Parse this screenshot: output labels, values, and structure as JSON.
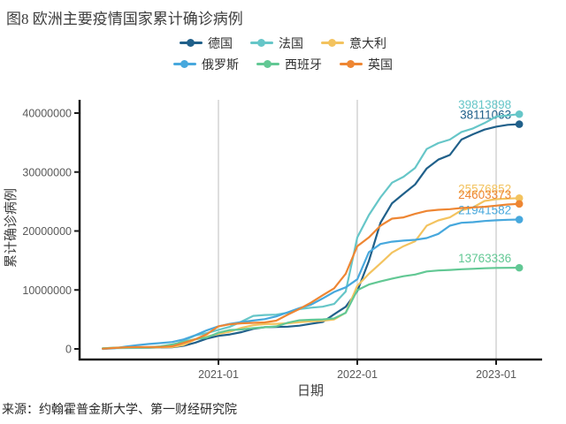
{
  "figure": {
    "title": "图8 欧洲主要疫情国家累计确诊病例",
    "source": "来源：约翰霍普金斯大学、第一财经研究院"
  },
  "colors": {
    "axis": "#1a1a1a",
    "grid": "#c9c9c9",
    "tick_label": "#595959",
    "text": "#3d3d3d"
  },
  "chart_data": {
    "type": "line",
    "title": "图8 欧洲主要疫情国家累计确诊病例",
    "xlabel": "日期",
    "ylabel": "累计确诊病例",
    "ylim": [
      0,
      40000000
    ],
    "yticks": [
      "0",
      "10000000",
      "20000000",
      "30000000",
      "40000000"
    ],
    "xticks": [
      "2021-01",
      "2022-01",
      "2023-01"
    ],
    "grid": "vertical-gridlines-at-year-ticks",
    "legend_position": "top",
    "x": [
      "2020-03",
      "2020-04",
      "2020-05",
      "2020-06",
      "2020-07",
      "2020-08",
      "2020-09",
      "2020-10",
      "2020-11",
      "2020-12",
      "2021-01",
      "2021-02",
      "2021-03",
      "2021-04",
      "2021-05",
      "2021-06",
      "2021-07",
      "2021-08",
      "2021-09",
      "2021-10",
      "2021-11",
      "2021-12",
      "2022-01",
      "2022-02",
      "2022-03",
      "2022-04",
      "2022-05",
      "2022-06",
      "2022-07",
      "2022-08",
      "2022-09",
      "2022-10",
      "2022-11",
      "2022-12",
      "2023-01",
      "2023-02",
      "2023-03"
    ],
    "series": [
      {
        "id": "germany",
        "name": "德国",
        "color": "#20608a",
        "final_label": "38111063",
        "values": [
          72000,
          163000,
          183000,
          195000,
          210000,
          244000,
          292000,
          532000,
          1060000,
          1760000,
          2220000,
          2450000,
          2843000,
          3400000,
          3682000,
          3727000,
          3770000,
          3942000,
          4255000,
          4560000,
          5880000,
          7150000,
          9800000,
          14900000,
          21400000,
          24700000,
          26300000,
          27900000,
          30600000,
          32100000,
          32900000,
          35500000,
          36400000,
          37200000,
          37700000,
          38000000,
          38111063
        ]
      },
      {
        "id": "france",
        "name": "法国",
        "color": "#66c6c8",
        "final_label": "39813898",
        "values": [
          52000,
          129000,
          143000,
          164000,
          187000,
          282000,
          578000,
          1413000,
          2270000,
          2680000,
          3240000,
          3760000,
          4645000,
          5610000,
          5750000,
          5820000,
          6140000,
          6750000,
          7000000,
          7160000,
          7620000,
          9740000,
          18900000,
          22700000,
          25700000,
          28200000,
          29200000,
          30700000,
          33900000,
          34900000,
          35500000,
          36800000,
          37400000,
          38300000,
          39400000,
          39600000,
          39813898
        ]
      },
      {
        "id": "italy",
        "name": "意大利",
        "color": "#f3c35f",
        "final_label": "25576852",
        "values": [
          106000,
          203000,
          232000,
          240000,
          248000,
          269000,
          314000,
          679000,
          1601000,
          2107000,
          2553000,
          2925000,
          3584000,
          4009000,
          4217000,
          4259000,
          4350000,
          4530000,
          4668000,
          4771000,
          5007000,
          6125000,
          10700000,
          12732000,
          14500000,
          16350000,
          17420000,
          18260000,
          20900000,
          21800000,
          22300000,
          23500000,
          24000000,
          25100000,
          25400000,
          25500000,
          25576852
        ]
      },
      {
        "id": "russia",
        "name": "俄罗斯",
        "color": "#47a8dd",
        "final_label": "21941582",
        "values": [
          2300,
          106000,
          405000,
          647000,
          839000,
          995000,
          1176000,
          1618000,
          2322000,
          3159000,
          3832000,
          4257000,
          4554000,
          4805000,
          5044000,
          5514000,
          6218000,
          6918000,
          7511000,
          8554000,
          9668000,
          10437000,
          11800000,
          16400000,
          17800000,
          18190000,
          18370000,
          18500000,
          18800000,
          19500000,
          20900000,
          21400000,
          21500000,
          21700000,
          21820000,
          21900000,
          21941582
        ]
      },
      {
        "id": "spain",
        "name": "西班牙",
        "color": "#62c894",
        "final_label": "13763336",
        "values": [
          95000,
          213000,
          239000,
          249000,
          288000,
          439000,
          748000,
          1185000,
          1648000,
          1928000,
          2743000,
          3204000,
          3300000,
          3524000,
          3668000,
          3821000,
          4447000,
          4847000,
          4940000,
          5000000,
          5174000,
          6134000,
          9961000,
          10920000,
          11451000,
          11920000,
          12327000,
          12614000,
          13140000,
          13306000,
          13390000,
          13511000,
          13595000,
          13684000,
          13731000,
          13750000,
          13763336
        ]
      },
      {
        "id": "uk",
        "name": "英国",
        "color": "#ee8633",
        "final_label": "24603373",
        "values": [
          25000,
          166000,
          274000,
          312000,
          325000,
          335000,
          453000,
          1014000,
          1630000,
          2489000,
          3835000,
          4182000,
          4345000,
          4421000,
          4487000,
          4800000,
          5830000,
          6790000,
          7843000,
          9100000,
          10276000,
          12748000,
          17428000,
          18900000,
          20900000,
          22100000,
          22300000,
          22900000,
          23400000,
          23600000,
          23700000,
          23900000,
          24000000,
          24100000,
          24300000,
          24500000,
          24603373
        ]
      }
    ]
  }
}
